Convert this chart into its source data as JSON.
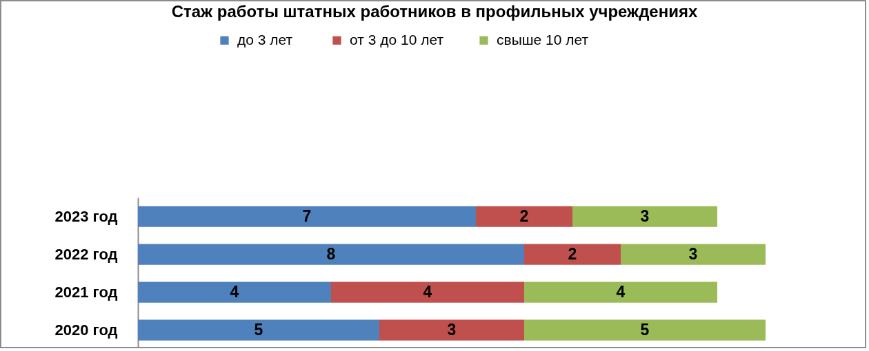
{
  "chart_data": {
    "type": "bar",
    "title": "Стаж работы штатных работников в профильных учреждениях",
    "categories": [
      "2023 год",
      "2022 год",
      "2021 год",
      "2020 год"
    ],
    "orientation": "horizontal",
    "stacked": true,
    "data_labels": true,
    "legend": "top",
    "tick_labels": "y",
    "series": [
      {
        "name": "до  3 лет",
        "color": "#4f81bd",
        "values": [
          7,
          8,
          4,
          5
        ]
      },
      {
        "name": "от 3 до 10 лет",
        "color": "#c0504d",
        "values": [
          2,
          2,
          4,
          3
        ]
      },
      {
        "name": "свыше 10 лет",
        "color": "#9bbb59",
        "values": [
          3,
          3,
          4,
          5
        ]
      }
    ]
  }
}
